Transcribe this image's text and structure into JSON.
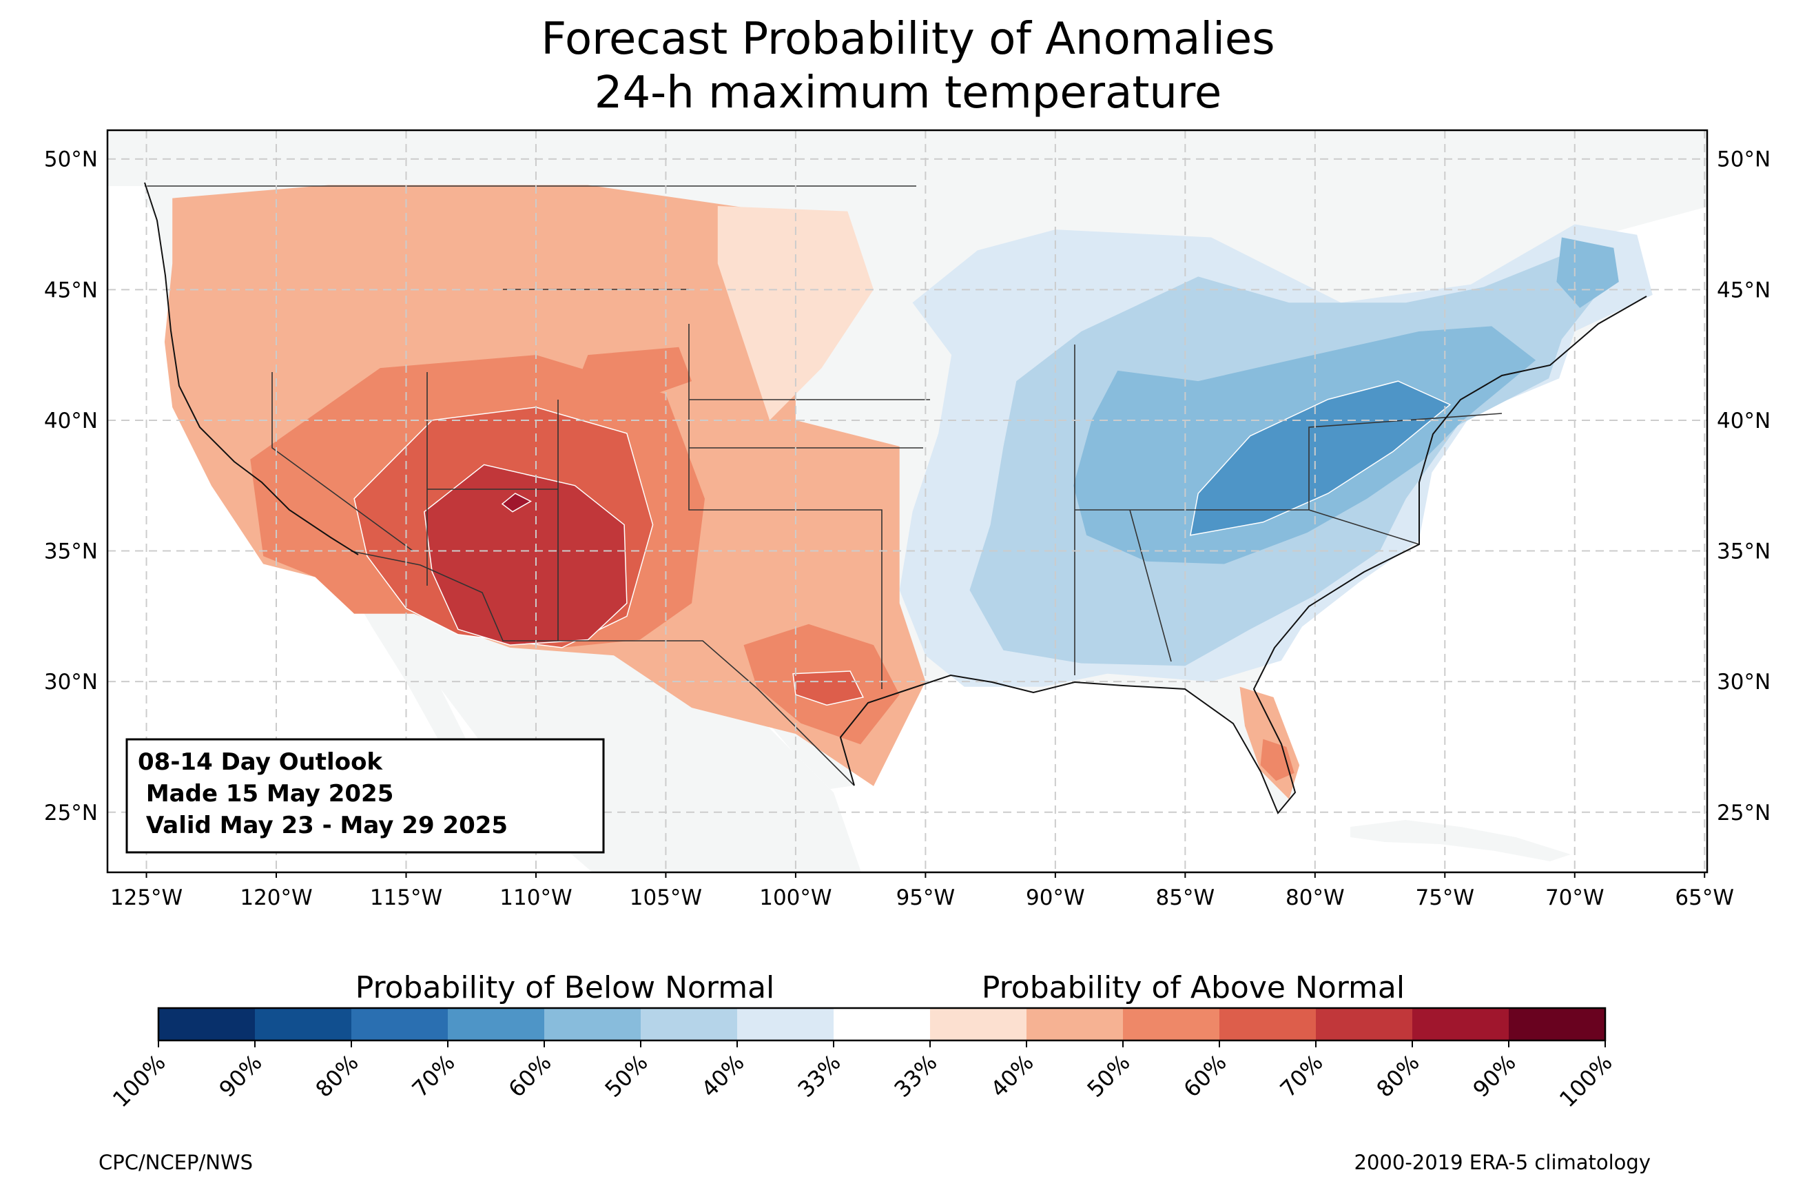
{
  "title": {
    "line1": "Forecast Probability of Anomalies",
    "line2": "24-h maximum temperature"
  },
  "map": {
    "projection": "equirectangular",
    "lon_range": [
      -126.5,
      -64.9
    ],
    "lat_range": [
      22.7,
      51.1
    ],
    "grid": true,
    "lon_ticks": [
      {
        "value": -125,
        "label": "125°W"
      },
      {
        "value": -120,
        "label": "120°W"
      },
      {
        "value": -115,
        "label": "115°W"
      },
      {
        "value": -110,
        "label": "110°W"
      },
      {
        "value": -105,
        "label": "105°W"
      },
      {
        "value": -100,
        "label": "100°W"
      },
      {
        "value": -95,
        "label": "95°W"
      },
      {
        "value": -90,
        "label": "90°W"
      },
      {
        "value": -85,
        "label": "85°W"
      },
      {
        "value": -80,
        "label": "80°W"
      },
      {
        "value": -75,
        "label": "75°W"
      },
      {
        "value": -70,
        "label": "70°W"
      },
      {
        "value": -65,
        "label": "65°W"
      }
    ],
    "lat_ticks": [
      {
        "value": 50,
        "label": "50°N"
      },
      {
        "value": 45,
        "label": "45°N"
      },
      {
        "value": 40,
        "label": "40°N"
      },
      {
        "value": 35,
        "label": "35°N"
      },
      {
        "value": 30,
        "label": "30°N"
      },
      {
        "value": 25,
        "label": "25°N"
      }
    ],
    "info_box": {
      "line1": "08-14 Day Outlook",
      "line2": " Made 15 May 2025",
      "line3": " Valid May 23 - May 29 2025"
    },
    "anomaly_regions": [
      {
        "category": "above",
        "level": 50,
        "description": "Western US",
        "outline": [
          [
            -124,
            48.5
          ],
          [
            -118,
            49
          ],
          [
            -108,
            49
          ],
          [
            -101,
            48
          ],
          [
            -99,
            46
          ],
          [
            -100,
            43
          ],
          [
            -100,
            40
          ],
          [
            -96,
            39
          ],
          [
            -96,
            33
          ],
          [
            -95,
            30
          ],
          [
            -97,
            26
          ],
          [
            -100,
            28
          ],
          [
            -104,
            29
          ],
          [
            -107,
            31
          ],
          [
            -111,
            31.3
          ],
          [
            -114.7,
            32.6
          ],
          [
            -117,
            32.6
          ],
          [
            -118.5,
            34
          ],
          [
            -120.5,
            34.5
          ],
          [
            -122.5,
            37.5
          ],
          [
            -124,
            40.5
          ],
          [
            -124.3,
            43
          ],
          [
            -124,
            46
          ]
        ]
      },
      {
        "category": "above",
        "level": 60,
        "description": "Southwest",
        "outline": [
          [
            -121,
            38.5
          ],
          [
            -116,
            42
          ],
          [
            -110,
            42.5
          ],
          [
            -105,
            41
          ],
          [
            -103.5,
            37
          ],
          [
            -104,
            33
          ],
          [
            -106,
            31.6
          ],
          [
            -109,
            31.3
          ],
          [
            -113,
            31.9
          ],
          [
            -114.7,
            32.6
          ],
          [
            -117,
            32.6
          ],
          [
            -118.5,
            34
          ],
          [
            -120.5,
            34.8
          ]
        ]
      },
      {
        "category": "above",
        "level": 70,
        "description": "Four Corners",
        "outline": [
          [
            -117,
            37
          ],
          [
            -114,
            40
          ],
          [
            -110,
            40.5
          ],
          [
            -106.5,
            39.5
          ],
          [
            -105.5,
            36
          ],
          [
            -106.5,
            32.5
          ],
          [
            -109,
            31.3
          ],
          [
            -113,
            31.8
          ],
          [
            -115,
            32.8
          ],
          [
            -116.5,
            34.8
          ]
        ]
      },
      {
        "category": "above",
        "level": 80,
        "description": "Arizona / New Mexico",
        "outline": [
          [
            -114.3,
            36.5
          ],
          [
            -112,
            38.3
          ],
          [
            -108.5,
            37.5
          ],
          [
            -106.6,
            36
          ],
          [
            -106.5,
            33
          ],
          [
            -108,
            31.6
          ],
          [
            -111,
            31.4
          ],
          [
            -113,
            32
          ],
          [
            -114,
            34.2
          ]
        ]
      },
      {
        "category": "above",
        "level": 90,
        "description": "northern Arizona",
        "outline": [
          [
            -110.8,
            37.2
          ],
          [
            -110.2,
            36.9
          ],
          [
            -110.9,
            36.5
          ],
          [
            -111.3,
            36.8
          ]
        ]
      },
      {
        "category": "above",
        "level": 60,
        "description": "Wyoming",
        "outline": [
          [
            -108,
            42.5
          ],
          [
            -104.5,
            42.8
          ],
          [
            -104,
            41.5
          ],
          [
            -106,
            40.8
          ],
          [
            -108.5,
            41.2
          ]
        ]
      },
      {
        "category": "above",
        "level": 60,
        "description": "central Texas",
        "outline": [
          [
            -102,
            31.4
          ],
          [
            -99.5,
            32.2
          ],
          [
            -97,
            31.4
          ],
          [
            -96,
            29.5
          ],
          [
            -97.5,
            27.6
          ],
          [
            -99.8,
            28.4
          ],
          [
            -101.5,
            29.8
          ]
        ]
      },
      {
        "category": "above",
        "level": 70,
        "description": "central Texas core",
        "outline": [
          [
            -100.1,
            30.3
          ],
          [
            -97.9,
            30.4
          ],
          [
            -97.4,
            29.4
          ],
          [
            -98.8,
            29.1
          ],
          [
            -100,
            29.5
          ]
        ]
      },
      {
        "category": "above",
        "level": 50,
        "description": "Florida",
        "outline": [
          [
            -82.9,
            29.8
          ],
          [
            -81.6,
            29.4
          ],
          [
            -80.6,
            26.8
          ],
          [
            -81,
            25.5
          ],
          [
            -82.1,
            26.6
          ],
          [
            -82.7,
            28.3
          ]
        ]
      },
      {
        "category": "above",
        "level": 60,
        "description": "south Florida",
        "outline": [
          [
            -82,
            27.8
          ],
          [
            -81.1,
            27.5
          ],
          [
            -80.8,
            26.5
          ],
          [
            -81.5,
            26.2
          ],
          [
            -82.1,
            26.8
          ]
        ]
      },
      {
        "category": "above",
        "level": 40,
        "description": "northern Plains",
        "outline": [
          [
            -103,
            48.2
          ],
          [
            -98,
            48
          ],
          [
            -97,
            45
          ],
          [
            -99,
            42
          ],
          [
            -101,
            40
          ],
          [
            -102,
            43
          ],
          [
            -103,
            46
          ]
        ]
      },
      {
        "category": "below",
        "level": 40,
        "description": "Eastern US",
        "outline": [
          [
            -93,
            46.5
          ],
          [
            -90,
            47.3
          ],
          [
            -84,
            47
          ],
          [
            -79,
            44.5
          ],
          [
            -74,
            45.2
          ],
          [
            -70,
            47.5
          ],
          [
            -67.6,
            47.1
          ],
          [
            -67,
            44.8
          ],
          [
            -70,
            43.4
          ],
          [
            -70.6,
            41.6
          ],
          [
            -74,
            40.2
          ],
          [
            -75.5,
            38
          ],
          [
            -76,
            35.4
          ],
          [
            -78.3,
            33.8
          ],
          [
            -80.5,
            32.1
          ],
          [
            -81.3,
            30.8
          ],
          [
            -84,
            30
          ],
          [
            -88,
            30.3
          ],
          [
            -90.5,
            29.8
          ],
          [
            -93.5,
            29.8
          ],
          [
            -95,
            31
          ],
          [
            -96,
            33.5
          ],
          [
            -95.5,
            36.5
          ],
          [
            -94.5,
            39.5
          ],
          [
            -94,
            42.5
          ],
          [
            -95.5,
            44.5
          ]
        ]
      },
      {
        "category": "below",
        "level": 50,
        "description": "Eastern US inner",
        "outline": [
          [
            -89,
            43.4
          ],
          [
            -84.5,
            45.5
          ],
          [
            -81,
            44.5
          ],
          [
            -76.5,
            44.5
          ],
          [
            -73.5,
            45.1
          ],
          [
            -70.5,
            46.3
          ],
          [
            -68.6,
            45.5
          ],
          [
            -70.5,
            43.1
          ],
          [
            -71,
            41.6
          ],
          [
            -74.5,
            39.8
          ],
          [
            -76.5,
            37
          ],
          [
            -77.5,
            35
          ],
          [
            -80,
            33.3
          ],
          [
            -82.5,
            32
          ],
          [
            -85,
            30.6
          ],
          [
            -89,
            30.7
          ],
          [
            -92,
            31.2
          ],
          [
            -93.3,
            33.5
          ],
          [
            -92.5,
            36
          ],
          [
            -92,
            39
          ],
          [
            -91.5,
            41.5
          ]
        ]
      },
      {
        "category": "below",
        "level": 60,
        "description": "Ohio Valley / Northeast",
        "outline": [
          [
            -87.6,
            41.9
          ],
          [
            -84.5,
            41.5
          ],
          [
            -80.5,
            42.4
          ],
          [
            -76,
            43.4
          ],
          [
            -73.2,
            43.6
          ],
          [
            -71.5,
            42.3
          ],
          [
            -74.3,
            40
          ],
          [
            -75.8,
            38.5
          ],
          [
            -78,
            37
          ],
          [
            -80.3,
            35.7
          ],
          [
            -83.5,
            34.5
          ],
          [
            -86.5,
            34.6
          ],
          [
            -88.8,
            35.6
          ],
          [
            -89.3,
            37.5
          ],
          [
            -88.6,
            40
          ]
        ]
      },
      {
        "category": "below",
        "level": 70,
        "description": "Appalachians",
        "outline": [
          [
            -82.5,
            39.4
          ],
          [
            -79.5,
            40.8
          ],
          [
            -76.8,
            41.5
          ],
          [
            -74.8,
            40.6
          ],
          [
            -77,
            38.8
          ],
          [
            -79.5,
            37.2
          ],
          [
            -82,
            36.1
          ],
          [
            -84.8,
            35.6
          ],
          [
            -84.5,
            37.2
          ]
        ]
      },
      {
        "category": "below",
        "level": 60,
        "description": "Maine",
        "outline": [
          [
            -70.5,
            47
          ],
          [
            -68.5,
            46.6
          ],
          [
            -68.3,
            45.3
          ],
          [
            -69.8,
            44.3
          ],
          [
            -70.7,
            45.3
          ]
        ]
      }
    ]
  },
  "colorbar": {
    "below_label": "Probability of Below Normal",
    "above_label": "Probability of Above Normal",
    "tick_labels": [
      "100%",
      "90%",
      "80%",
      "70%",
      "60%",
      "50%",
      "40%",
      "33%",
      "33%",
      "40%",
      "50%",
      "60%",
      "70%",
      "80%",
      "90%",
      "100%"
    ],
    "colors": [
      "#08306b",
      "#114f8f",
      "#2a6fb1",
      "#4e95c7",
      "#88bcdc",
      "#b5d4e9",
      "#dbe9f5",
      "#ffffff",
      "#fce0d0",
      "#f6b293",
      "#ee8868",
      "#dd5e4b",
      "#c1373a",
      "#a0162d",
      "#69021f"
    ]
  },
  "footer": {
    "left": "CPC/NCEP/NWS",
    "right": "2000-2019 ERA-5 climatology"
  },
  "colors": {
    "above": {
      "40": "#fce0d0",
      "50": "#f6b293",
      "60": "#ee8868",
      "70": "#dd5e4b",
      "80": "#c1373a",
      "90": "#a0162d",
      "100": "#69021f"
    },
    "below": {
      "40": "#dbe9f5",
      "50": "#b5d4e9",
      "60": "#88bcdc",
      "70": "#4e95c7",
      "80": "#2a6fb1",
      "90": "#114f8f",
      "100": "#08306b"
    },
    "land": "#f4f6f6",
    "grid": "#cccccc"
  }
}
